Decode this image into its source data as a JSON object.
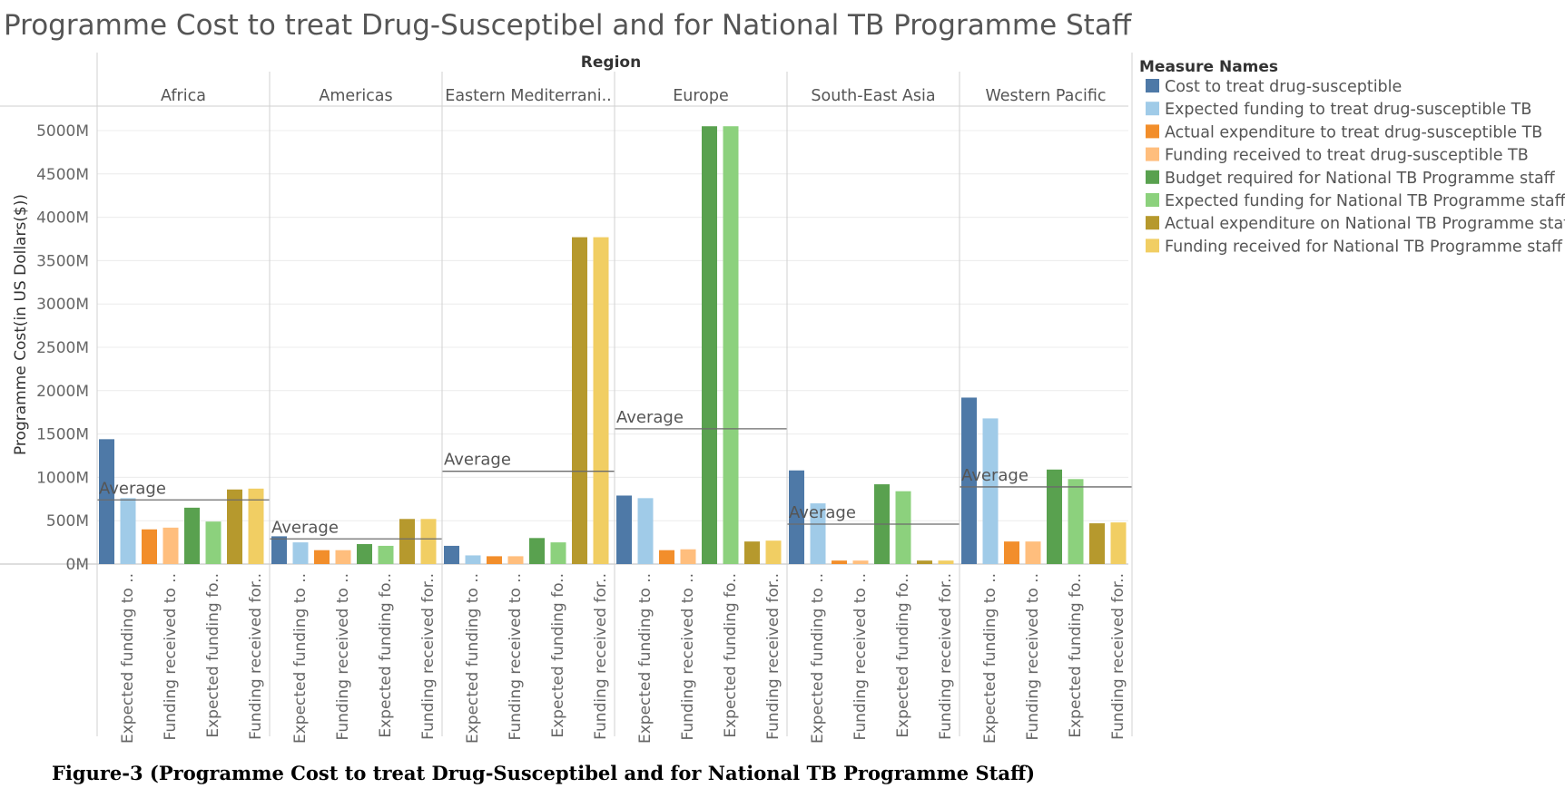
{
  "chart_data": {
    "type": "bar",
    "title": "Programme Cost to treat Drug-Susceptibel and for National TB Programme Staff",
    "column_header": "Region",
    "ylabel": "Programme Cost(in US Dollars($))",
    "ylim": [
      0,
      5300
    ],
    "y_ticks": [
      {
        "value": 5000,
        "label": "5000M"
      },
      {
        "value": 4500,
        "label": "4500M"
      },
      {
        "value": 4000,
        "label": "4000M"
      },
      {
        "value": 3500,
        "label": "3500M"
      },
      {
        "value": 3000,
        "label": "3000M"
      },
      {
        "value": 2500,
        "label": "2500M"
      },
      {
        "value": 2000,
        "label": "2000M"
      },
      {
        "value": 1500,
        "label": "1500M"
      },
      {
        "value": 1000,
        "label": "1000M"
      },
      {
        "value": 500,
        "label": "500M"
      },
      {
        "value": 0,
        "label": "0M"
      }
    ],
    "regions": [
      "Africa",
      "Americas",
      "Eastern Mediterrani..",
      "Europe",
      "South-East Asia",
      "Western Pacific"
    ],
    "x_labels": [
      "Expected funding to ..",
      "Funding received to ..",
      "Expected funding fo..",
      "Funding received for.."
    ],
    "legend_title": "Measure Names",
    "series": [
      {
        "name": "Cost to treat drug-susceptible",
        "color": "#4E79A7",
        "values": [
          1440,
          320,
          210,
          790,
          1080,
          1920
        ]
      },
      {
        "name": "Expected funding to treat drug-susceptible TB",
        "color": "#A0CBE8",
        "values": [
          760,
          250,
          100,
          760,
          700,
          1680
        ]
      },
      {
        "name": "Actual expenditure to treat drug-susceptible TB",
        "color": "#F28E2B",
        "values": [
          400,
          160,
          90,
          160,
          40,
          260
        ]
      },
      {
        "name": "Funding received to treat drug-susceptible TB",
        "color": "#FFBE7D",
        "values": [
          420,
          160,
          90,
          170,
          40,
          260
        ]
      },
      {
        "name": "Budget required for National TB Programme staff",
        "color": "#59A14F",
        "values": [
          650,
          230,
          300,
          5050,
          920,
          1090
        ]
      },
      {
        "name": "Expected funding for National TB Programme staff",
        "color": "#8CD17D",
        "values": [
          490,
          210,
          250,
          5050,
          840,
          980
        ]
      },
      {
        "name": "Actual expenditure on National TB Programme staff",
        "color": "#B6992D",
        "values": [
          860,
          520,
          3770,
          260,
          40,
          470
        ]
      },
      {
        "name": "Funding received for National TB Programme staff",
        "color": "#F1CE63",
        "values": [
          870,
          520,
          3770,
          270,
          40,
          480
        ]
      }
    ],
    "average_label": "Average",
    "averages": [
      740,
      290,
      1070,
      1560,
      460,
      890
    ]
  },
  "caption": "Figure-3 (Programme Cost to treat Drug-Susceptibel and for National TB Programme Staff)"
}
